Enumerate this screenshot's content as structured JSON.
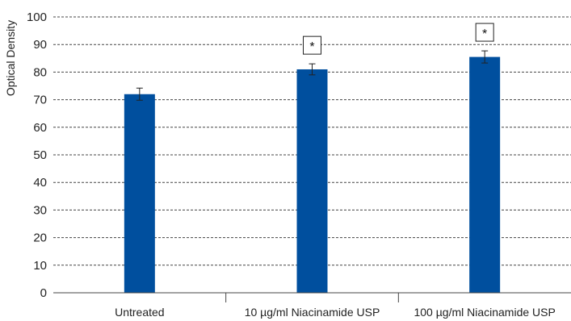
{
  "chart_data": {
    "type": "bar",
    "ylabel": "Optical Density",
    "ylim": [
      0,
      100
    ],
    "yticks": [
      0,
      10,
      20,
      30,
      40,
      50,
      60,
      70,
      80,
      90,
      100
    ],
    "grid": true,
    "categories": [
      "Untreated",
      "10 µg/ml Niacinamide USP",
      "100 µg/ml Niacinamide USP"
    ],
    "values": [
      72,
      81,
      85.5
    ],
    "error": [
      2.2,
      2.0,
      2.2
    ],
    "significance": [
      "",
      "*",
      "*"
    ],
    "bar_color": "#004F9E"
  }
}
